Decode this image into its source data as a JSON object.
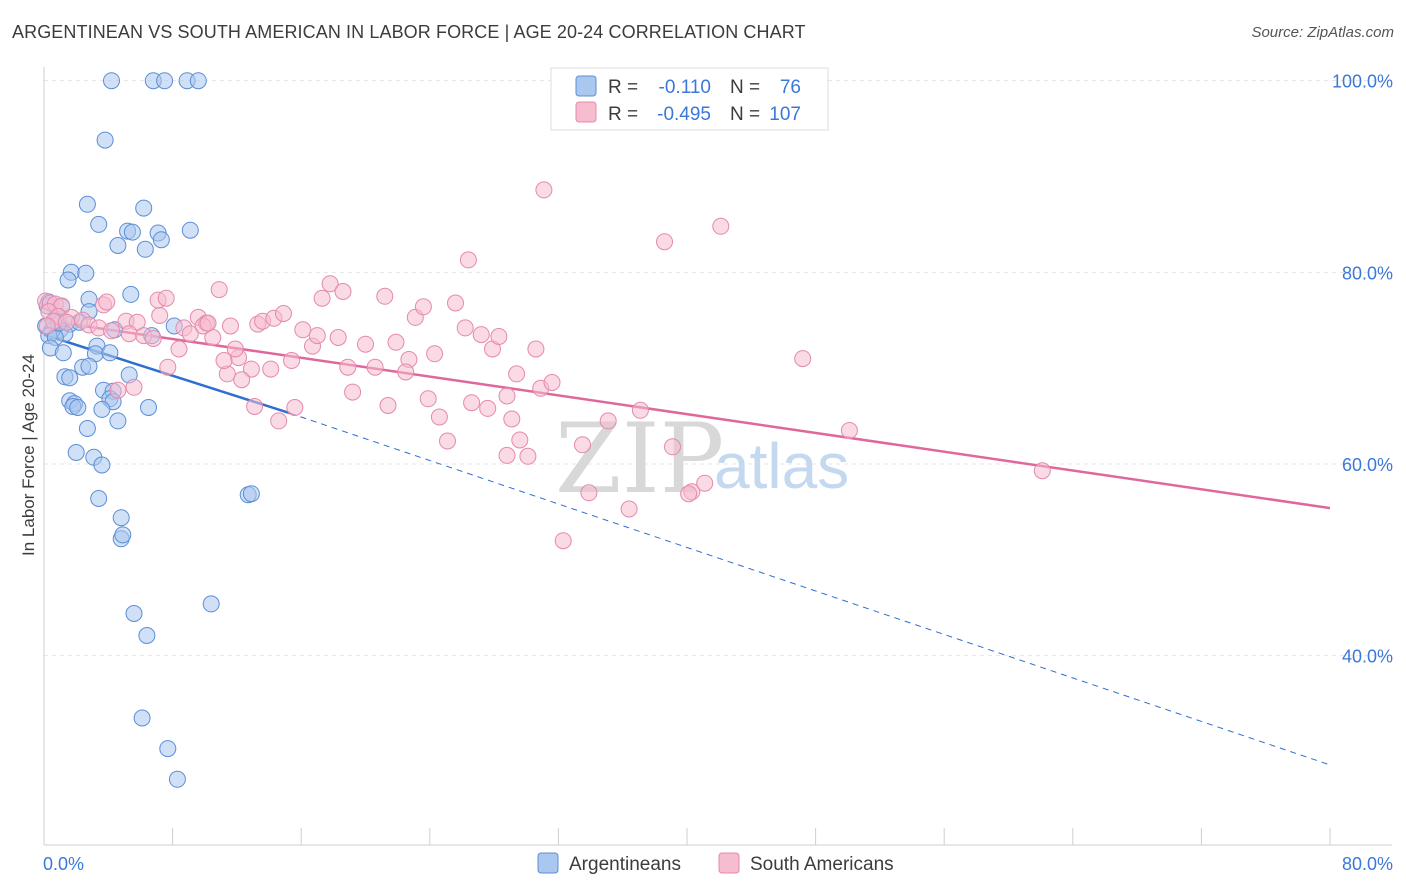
{
  "title": "ARGENTINEAN VS SOUTH AMERICAN IN LABOR FORCE | AGE 20-24 CORRELATION CHART",
  "source": "Source: ZipAtlas.com",
  "watermark": {
    "zip": "ZIP",
    "atlas": "atlas"
  },
  "colors": {
    "blue_fill": "#a9c7ef",
    "blue_stroke": "#5b8fd6",
    "blue_line": "#2f6fcf",
    "pink_fill": "#f6bcd0",
    "pink_stroke": "#e48aab",
    "pink_line": "#e0679a",
    "grid": "#e4e4e4",
    "axis_label": "#3b78d8"
  },
  "chart_data": {
    "type": "scatter",
    "title": "ARGENTINEAN VS SOUTH AMERICAN IN LABOR FORCE | AGE 20-24 CORRELATION CHART",
    "xlabel": "",
    "ylabel": "In Labor Force | Age 20-24",
    "xlim": [
      0,
      80
    ],
    "ylim": [
      20,
      104
    ],
    "x_tick_labels": [
      {
        "value": 0,
        "label": "0.0%"
      },
      {
        "value": 80,
        "label": "80.0%"
      }
    ],
    "y_tick_labels": [
      {
        "value": 100,
        "label": "100.0%"
      },
      {
        "value": 80,
        "label": "80.0%"
      },
      {
        "value": 60,
        "label": "60.0%"
      },
      {
        "value": 40,
        "label": "40.0%"
      }
    ],
    "legend": {
      "position": "top-center",
      "entries": [
        {
          "series": "Argentineans",
          "r_label": "R =",
          "r_value": "-0.110",
          "n_label": "N =",
          "n_value": "76"
        },
        {
          "series": "South Americans",
          "r_label": "R =",
          "r_value": "-0.495",
          "n_label": "N =",
          "n_value": "107"
        }
      ]
    },
    "series": [
      {
        "name": "Argentineans",
        "color": "blue",
        "trend": {
          "x_start": 0,
          "y_start": 73.5,
          "x_solid_end": 15.3,
          "y_solid_end": 65.3,
          "x_end": 80,
          "y_end": 28.6
        },
        "points": [
          [
            4.2,
            100
          ],
          [
            6.8,
            100
          ],
          [
            7.5,
            100
          ],
          [
            8.9,
            100
          ],
          [
            9.6,
            100
          ],
          [
            3.8,
            93.8
          ],
          [
            2.7,
            87.1
          ],
          [
            6.2,
            86.7
          ],
          [
            3.4,
            85.0
          ],
          [
            5.2,
            84.3
          ],
          [
            5.5,
            84.2
          ],
          [
            7.1,
            84.1
          ],
          [
            9.1,
            84.4
          ],
          [
            4.6,
            82.8
          ],
          [
            6.3,
            82.4
          ],
          [
            7.3,
            83.4
          ],
          [
            1.7,
            80.0
          ],
          [
            2.6,
            79.9
          ],
          [
            1.5,
            79.2
          ],
          [
            5.4,
            77.7
          ],
          [
            2.8,
            77.2
          ],
          [
            0.3,
            76.9
          ],
          [
            1.1,
            76.4
          ],
          [
            0.8,
            75.4
          ],
          [
            1.6,
            74.6
          ],
          [
            0.6,
            74.8
          ],
          [
            0.1,
            74.4
          ],
          [
            1.0,
            74.0
          ],
          [
            1.3,
            73.6
          ],
          [
            0.5,
            73.9
          ],
          [
            0.3,
            73.4
          ],
          [
            0.7,
            73.2
          ],
          [
            2.8,
            75.9
          ],
          [
            4.4,
            74.0
          ],
          [
            6.7,
            73.4
          ],
          [
            8.1,
            74.4
          ],
          [
            3.3,
            72.3
          ],
          [
            0.4,
            72.1
          ],
          [
            1.2,
            71.6
          ],
          [
            3.2,
            71.5
          ],
          [
            2.4,
            70.1
          ],
          [
            2.8,
            70.2
          ],
          [
            4.1,
            71.6
          ],
          [
            5.3,
            69.3
          ],
          [
            1.3,
            69.1
          ],
          [
            1.6,
            69.0
          ],
          [
            3.7,
            67.7
          ],
          [
            4.3,
            67.6
          ],
          [
            1.6,
            66.6
          ],
          [
            1.9,
            66.3
          ],
          [
            4.1,
            66.8
          ],
          [
            4.3,
            66.5
          ],
          [
            1.8,
            66.0
          ],
          [
            2.1,
            65.9
          ],
          [
            3.6,
            65.7
          ],
          [
            6.5,
            65.9
          ],
          [
            2.7,
            63.7
          ],
          [
            4.6,
            64.5
          ],
          [
            2.0,
            61.2
          ],
          [
            3.1,
            60.7
          ],
          [
            3.6,
            59.9
          ],
          [
            12.7,
            56.8
          ],
          [
            12.9,
            56.9
          ],
          [
            3.4,
            56.4
          ],
          [
            4.8,
            54.4
          ],
          [
            4.8,
            52.2
          ],
          [
            4.9,
            52.6
          ],
          [
            5.6,
            44.4
          ],
          [
            6.4,
            42.1
          ],
          [
            10.4,
            45.4
          ],
          [
            6.1,
            33.5
          ],
          [
            7.7,
            30.3
          ],
          [
            8.3,
            27.1
          ],
          [
            0.9,
            74.7
          ],
          [
            2.2,
            74.8
          ],
          [
            0.2,
            76.5
          ]
        ]
      },
      {
        "name": "South Americans",
        "color": "pink",
        "trend": {
          "x_start": 0,
          "y_start": 75.0,
          "x_end": 80,
          "y_end": 55.4
        },
        "points": [
          [
            0.1,
            77.0
          ],
          [
            0.4,
            76.8
          ],
          [
            0.7,
            76.7
          ],
          [
            1.1,
            76.5
          ],
          [
            0.3,
            75.9
          ],
          [
            0.9,
            75.4
          ],
          [
            1.7,
            75.3
          ],
          [
            2.4,
            75.0
          ],
          [
            0.6,
            74.9
          ],
          [
            1.4,
            74.8
          ],
          [
            2.8,
            74.5
          ],
          [
            3.4,
            74.2
          ],
          [
            0.2,
            74.4
          ],
          [
            3.7,
            76.6
          ],
          [
            5.1,
            74.9
          ],
          [
            5.8,
            74.8
          ],
          [
            5.3,
            73.6
          ],
          [
            6.2,
            73.4
          ],
          [
            7.2,
            75.5
          ],
          [
            6.8,
            73.1
          ],
          [
            8.4,
            72.0
          ],
          [
            7.1,
            77.1
          ],
          [
            7.6,
            77.3
          ],
          [
            8.7,
            74.2
          ],
          [
            9.1,
            73.6
          ],
          [
            9.6,
            75.3
          ],
          [
            10.1,
            74.7
          ],
          [
            10.5,
            73.2
          ],
          [
            11.6,
            74.4
          ],
          [
            10.9,
            78.2
          ],
          [
            12.1,
            71.1
          ],
          [
            11.9,
            72.0
          ],
          [
            11.4,
            69.4
          ],
          [
            12.9,
            69.9
          ],
          [
            13.3,
            74.6
          ],
          [
            13.6,
            74.9
          ],
          [
            14.3,
            75.2
          ],
          [
            14.9,
            75.7
          ],
          [
            15.4,
            70.8
          ],
          [
            14.1,
            69.9
          ],
          [
            16.1,
            74.0
          ],
          [
            16.7,
            72.3
          ],
          [
            17.0,
            73.4
          ],
          [
            17.3,
            77.3
          ],
          [
            17.8,
            78.8
          ],
          [
            18.3,
            73.2
          ],
          [
            18.9,
            70.1
          ],
          [
            19.2,
            67.5
          ],
          [
            18.6,
            78.0
          ],
          [
            20.0,
            72.5
          ],
          [
            20.6,
            70.1
          ],
          [
            21.2,
            77.5
          ],
          [
            21.9,
            72.7
          ],
          [
            21.4,
            66.1
          ],
          [
            22.7,
            70.9
          ],
          [
            23.1,
            75.3
          ],
          [
            23.6,
            76.4
          ],
          [
            22.5,
            69.6
          ],
          [
            24.3,
            71.5
          ],
          [
            23.9,
            66.8
          ],
          [
            24.6,
            64.9
          ],
          [
            25.1,
            62.4
          ],
          [
            25.6,
            76.8
          ],
          [
            26.2,
            74.2
          ],
          [
            26.6,
            66.4
          ],
          [
            27.2,
            73.5
          ],
          [
            27.6,
            65.8
          ],
          [
            27.9,
            72.0
          ],
          [
            28.3,
            73.3
          ],
          [
            28.8,
            67.1
          ],
          [
            29.1,
            64.7
          ],
          [
            29.6,
            62.5
          ],
          [
            28.8,
            60.9
          ],
          [
            30.1,
            60.8
          ],
          [
            30.6,
            72.0
          ],
          [
            30.9,
            67.9
          ],
          [
            31.6,
            68.5
          ],
          [
            31.1,
            88.6
          ],
          [
            29.4,
            69.4
          ],
          [
            26.4,
            81.3
          ],
          [
            32.3,
            52.0
          ],
          [
            33.5,
            62.0
          ],
          [
            33.9,
            57.0
          ],
          [
            35.1,
            64.5
          ],
          [
            36.4,
            55.3
          ],
          [
            37.1,
            65.6
          ],
          [
            38.6,
            83.2
          ],
          [
            39.1,
            61.8
          ],
          [
            40.3,
            57.1
          ],
          [
            40.1,
            56.9
          ],
          [
            41.1,
            58.0
          ],
          [
            42.1,
            84.8
          ],
          [
            47.2,
            71.0
          ],
          [
            50.1,
            63.5
          ],
          [
            62.1,
            59.3
          ],
          [
            13.1,
            66.0
          ],
          [
            14.6,
            64.5
          ],
          [
            15.6,
            65.9
          ],
          [
            9.9,
            74.4
          ],
          [
            10.2,
            74.7
          ],
          [
            11.2,
            70.8
          ],
          [
            12.3,
            68.8
          ],
          [
            5.6,
            68.0
          ],
          [
            4.6,
            67.7
          ],
          [
            7.7,
            70.1
          ],
          [
            3.9,
            76.9
          ],
          [
            4.2,
            73.9
          ]
        ]
      }
    ]
  }
}
